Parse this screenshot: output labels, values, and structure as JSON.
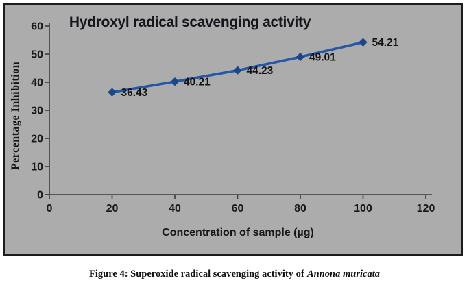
{
  "chart_data": {
    "type": "line",
    "title": "Hydroxyl radical scavenging activity",
    "xlabel": "Concentration of sample (µg)",
    "ylabel": "Percentage Inhibition",
    "x": [
      20,
      40,
      60,
      80,
      100
    ],
    "values": [
      36.43,
      40.21,
      44.23,
      49.01,
      54.21
    ],
    "data_labels": [
      "36.43",
      "40.21",
      "44.23",
      "49.01",
      "54.21"
    ],
    "xlim": [
      0,
      120
    ],
    "ylim": [
      0,
      60
    ],
    "x_ticks": [
      0,
      20,
      40,
      60,
      80,
      100,
      120
    ],
    "y_ticks": [
      0,
      10,
      20,
      30,
      40,
      50,
      60
    ],
    "grid": false,
    "legend": "none",
    "marker": "diamond",
    "series_color": "#2458a6",
    "marker_color": "#1d4688",
    "axis_color": "#3c3c3c",
    "plot_bg": "#acacac"
  },
  "caption": {
    "text": "Figure 4: Superoxide radical scavenging activity of",
    "species": "Annona muricata"
  }
}
